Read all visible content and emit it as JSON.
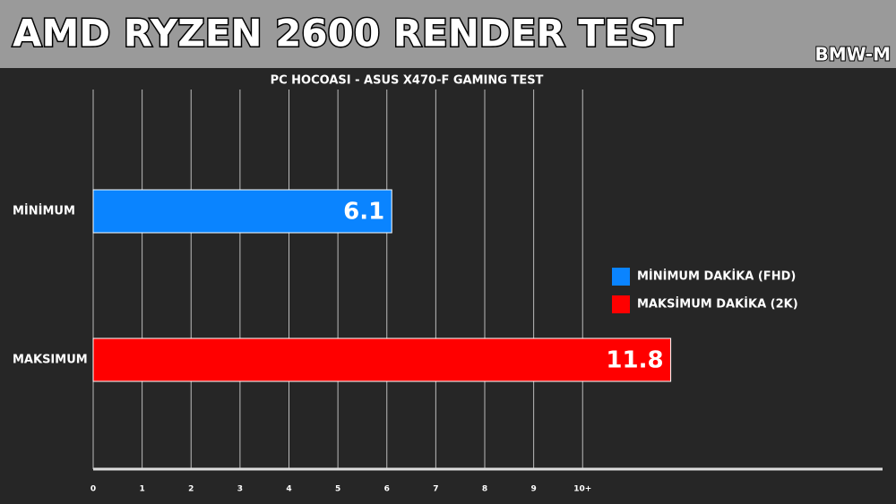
{
  "chart_data": {
    "type": "bar",
    "orientation": "horizontal",
    "title": "AMD RYZEN 2600 RENDER TEST",
    "watermark": "BMW-M",
    "subtitle": "PC HOCOASI - ASUS X470-F GAMING TEST",
    "categories": [
      "MİNİMUM",
      "MAKSIMUM"
    ],
    "series": [
      {
        "name": "MİNİMUM DAKİKA (FHD)",
        "color": "#0a84ff",
        "values": [
          6.1,
          null
        ]
      },
      {
        "name": "MAKSİMUM DAKİKA (2K)",
        "color": "#ff0000",
        "values": [
          null,
          11.8
        ]
      }
    ],
    "xlim": [
      0,
      16
    ],
    "xticks": [
      0,
      1,
      2,
      3,
      4,
      5,
      6,
      7,
      8,
      9,
      {
        "value": 10,
        "label": "10+"
      }
    ],
    "grid": true,
    "legend": "right"
  }
}
